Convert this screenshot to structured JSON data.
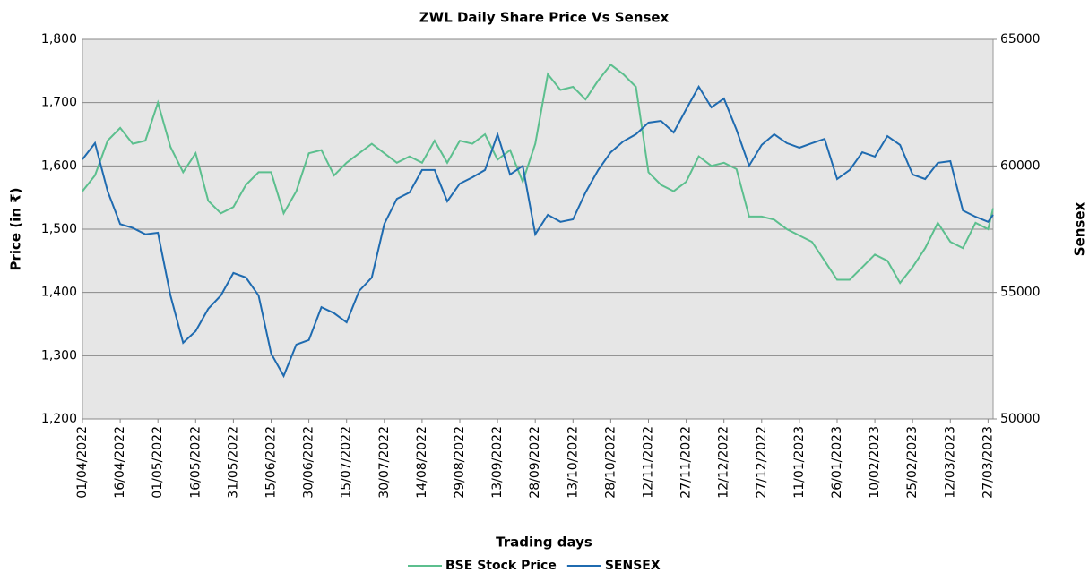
{
  "chart_data": {
    "type": "line",
    "title": "ZWL Daily Share Price Vs Sensex",
    "xlabel": "Trading days",
    "ylabel": "Price (in ₹)",
    "y2label": "Sensex",
    "x": [
      "01/04/2022",
      "06/04/2022",
      "11/04/2022",
      "16/04/2022",
      "21/04/2022",
      "26/04/2022",
      "01/05/2022",
      "06/05/2022",
      "11/05/2022",
      "16/05/2022",
      "21/05/2022",
      "26/05/2022",
      "31/05/2022",
      "05/06/2022",
      "10/06/2022",
      "15/06/2022",
      "20/06/2022",
      "25/06/2022",
      "30/06/2022",
      "05/07/2022",
      "10/07/2022",
      "15/07/2022",
      "20/07/2022",
      "25/07/2022",
      "30/07/2022",
      "04/08/2022",
      "09/08/2022",
      "14/08/2022",
      "19/08/2022",
      "24/08/2022",
      "29/08/2022",
      "03/09/2022",
      "08/09/2022",
      "13/09/2022",
      "18/09/2022",
      "23/09/2022",
      "28/09/2022",
      "03/10/2022",
      "08/10/2022",
      "13/10/2022",
      "18/10/2022",
      "23/10/2022",
      "28/10/2022",
      "02/11/2022",
      "07/11/2022",
      "12/11/2022",
      "17/11/2022",
      "22/11/2022",
      "27/11/2022",
      "02/12/2022",
      "07/12/2022",
      "12/12/2022",
      "17/12/2022",
      "22/12/2022",
      "27/12/2022",
      "01/01/2023",
      "06/01/2023",
      "11/01/2023",
      "16/01/2023",
      "21/01/2023",
      "26/01/2023",
      "31/01/2023",
      "05/02/2023",
      "10/02/2023",
      "15/02/2023",
      "20/02/2023",
      "25/02/2023",
      "02/03/2023",
      "07/03/2023",
      "12/03/2023",
      "17/03/2023",
      "22/03/2023",
      "27/03/2023",
      "29/03/2023"
    ],
    "series": [
      {
        "name": "BSE Stock Price",
        "color": "#5cbf8e",
        "values": [
          1560,
          1585,
          1640,
          1660,
          1635,
          1640,
          1700,
          1630,
          1590,
          1620,
          1545,
          1525,
          1535,
          1570,
          1590,
          1590,
          1525,
          1560,
          1620,
          1625,
          1585,
          1605,
          1620,
          1635,
          1620,
          1605,
          1615,
          1605,
          1640,
          1605,
          1640,
          1635,
          1650,
          1610,
          1625,
          1575,
          1635,
          1745,
          1720,
          1725,
          1705,
          1735,
          1760,
          1745,
          1725,
          1590,
          1570,
          1560,
          1575,
          1615,
          1600,
          1605,
          1595,
          1520,
          1520,
          1515,
          1500,
          1490,
          1480,
          1450,
          1420,
          1420,
          1440,
          1460,
          1450,
          1415,
          1440,
          1470,
          1510,
          1480,
          1470,
          1510,
          1500,
          1533
        ]
      },
      {
        "name": "SENSEX",
        "color": "#1f6bb0",
        "axis": "y2",
        "values": [
          60260,
          60900,
          59000,
          57700,
          57550,
          57300,
          57360,
          54880,
          53010,
          53470,
          54350,
          54880,
          55770,
          55590,
          54880,
          52590,
          51700,
          52940,
          53120,
          54420,
          54180,
          53820,
          55060,
          55590,
          57710,
          58700,
          58950,
          59840,
          59840,
          58600,
          59300,
          59550,
          59840,
          61250,
          59660,
          60000,
          57300,
          58070,
          57790,
          57890,
          58950,
          59840,
          60540,
          60970,
          61250,
          61710,
          61780,
          61320,
          62240,
          63130,
          62310,
          62660,
          61430,
          60010,
          60830,
          61250,
          60900,
          60720,
          60900,
          61070,
          59480,
          59840,
          60540,
          60370,
          61180,
          60830,
          59660,
          59480,
          60120,
          60190,
          58240,
          57990,
          57790,
          58070
        ]
      }
    ],
    "xlim": [
      "01/04/2022",
      "29/03/2023"
    ],
    "xticks": [
      "01/04/2022",
      "16/04/2022",
      "01/05/2022",
      "16/05/2022",
      "31/05/2022",
      "15/06/2022",
      "30/06/2022",
      "15/07/2022",
      "30/07/2022",
      "14/08/2022",
      "29/08/2022",
      "13/09/2022",
      "28/09/2022",
      "13/10/2022",
      "28/10/2022",
      "12/11/2022",
      "27/11/2022",
      "12/12/2022",
      "27/12/2022",
      "11/01/2023",
      "26/01/2023",
      "10/02/2023",
      "25/02/2023",
      "12/03/2023",
      "27/03/2023"
    ],
    "ylim": [
      1200,
      1800
    ],
    "yticks": [
      {
        "value": 1200,
        "label": "1,200"
      },
      {
        "value": 1300,
        "label": "1,300"
      },
      {
        "value": 1400,
        "label": "1,400"
      },
      {
        "value": 1500,
        "label": "1,500"
      },
      {
        "value": 1600,
        "label": "1,600"
      },
      {
        "value": 1700,
        "label": "1,700"
      },
      {
        "value": 1800,
        "label": "1,800"
      }
    ],
    "y2lim": [
      50000,
      65000
    ],
    "y2ticks": [
      50000,
      55000,
      60000,
      65000
    ],
    "grid": true,
    "legend": "bottom"
  }
}
